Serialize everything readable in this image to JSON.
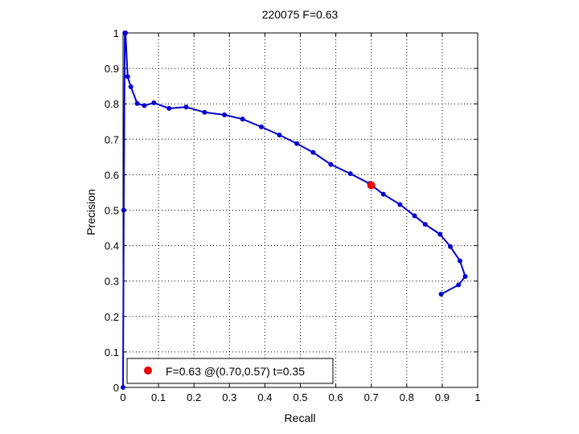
{
  "chart_data": {
    "type": "line",
    "title": "220075 F=0.63",
    "xlabel": "Recall",
    "ylabel": "Precision",
    "xlim": [
      0,
      1
    ],
    "ylim": [
      0,
      1
    ],
    "x_ticks": [
      "0",
      "0.1",
      "0.2",
      "0.3",
      "0.4",
      "0.5",
      "0.6",
      "0.7",
      "0.8",
      "0.9",
      "1"
    ],
    "y_ticks": [
      "0",
      "0.1",
      "0.2",
      "0.3",
      "0.4",
      "0.5",
      "0.6",
      "0.7",
      "0.8",
      "0.9",
      "1"
    ],
    "grid": true,
    "grid_style": "dotted",
    "legend_position": "bottom-left",
    "colors": {
      "curve": "#0000cc",
      "best_point": "#ee0000",
      "axes": "#000000",
      "grid": "#000000"
    },
    "series": [
      {
        "points": [
          [
            0.0,
            0.0
          ],
          [
            0.002,
            0.5
          ],
          [
            0.005,
            1.0
          ],
          [
            0.007,
            1.0
          ],
          [
            0.013,
            0.877
          ],
          [
            0.022,
            0.848
          ],
          [
            0.04,
            0.801
          ],
          [
            0.06,
            0.795
          ],
          [
            0.087,
            0.803
          ],
          [
            0.13,
            0.787
          ],
          [
            0.178,
            0.791
          ],
          [
            0.23,
            0.776
          ],
          [
            0.286,
            0.769
          ],
          [
            0.337,
            0.757
          ],
          [
            0.39,
            0.735
          ],
          [
            0.441,
            0.712
          ],
          [
            0.49,
            0.688
          ],
          [
            0.536,
            0.663
          ],
          [
            0.586,
            0.629
          ],
          [
            0.641,
            0.603
          ],
          [
            0.695,
            0.575
          ],
          [
            0.734,
            0.545
          ],
          [
            0.781,
            0.516
          ],
          [
            0.822,
            0.484
          ],
          [
            0.852,
            0.46
          ],
          [
            0.894,
            0.432
          ],
          [
            0.923,
            0.397
          ],
          [
            0.95,
            0.357
          ],
          [
            0.965,
            0.313
          ],
          [
            0.946,
            0.289
          ],
          [
            0.897,
            0.263
          ]
        ]
      }
    ],
    "best_point": {
      "recall": 0.7,
      "precision": 0.57,
      "label": "F=0.63 @(0.70,0.57) t=0.35"
    }
  }
}
